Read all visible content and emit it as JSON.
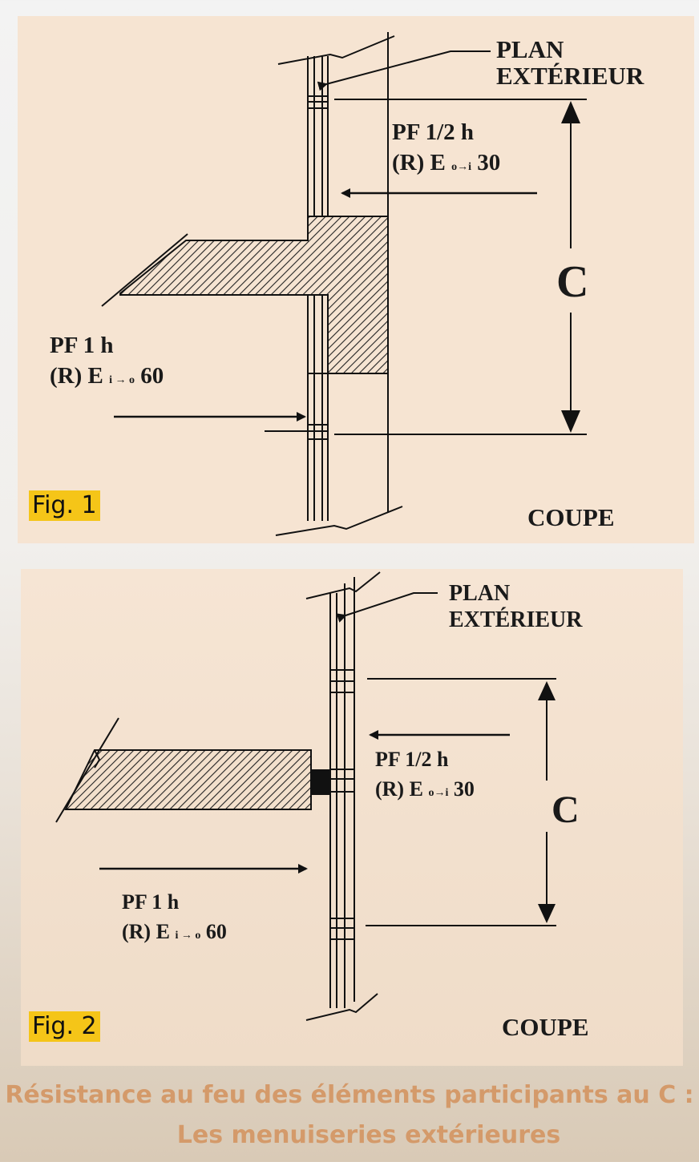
{
  "figure1": {
    "tag": "Fig. 1",
    "plan_line1": "PLAN",
    "plan_line2": "EXTÉRIEUR",
    "top_rating_title": "PF 1/2 h",
    "top_rating_prefix": "(R) E",
    "top_rating_sub": "o→i",
    "top_rating_value": "30",
    "bottom_rating_title": "PF 1 h",
    "bottom_rating_prefix": "(R) E",
    "bottom_rating_sub": "i → o",
    "bottom_rating_value": "60",
    "distance_label": "C",
    "section_label": "COUPE"
  },
  "figure2": {
    "tag": "Fig. 2",
    "plan_line1": "PLAN",
    "plan_line2": "EXTÉRIEUR",
    "top_rating_title": "PF 1/2 h",
    "top_rating_prefix": "(R) E",
    "top_rating_sub": "o→i",
    "top_rating_value": "30",
    "bottom_rating_title": "PF 1 h",
    "bottom_rating_prefix": "(R) E",
    "bottom_rating_sub": "i → o",
    "bottom_rating_value": "60",
    "distance_label": "C",
    "section_label": "COUPE"
  },
  "caption": {
    "line1": "Résistance au feu des éléments participants au C :",
    "line2": "Les menuiseries extérieures"
  },
  "colors": {
    "panel": "#f6e4d2",
    "tag_highlight": "#f5c518",
    "caption": "#d49a6a",
    "ink": "#1a1a1a"
  }
}
